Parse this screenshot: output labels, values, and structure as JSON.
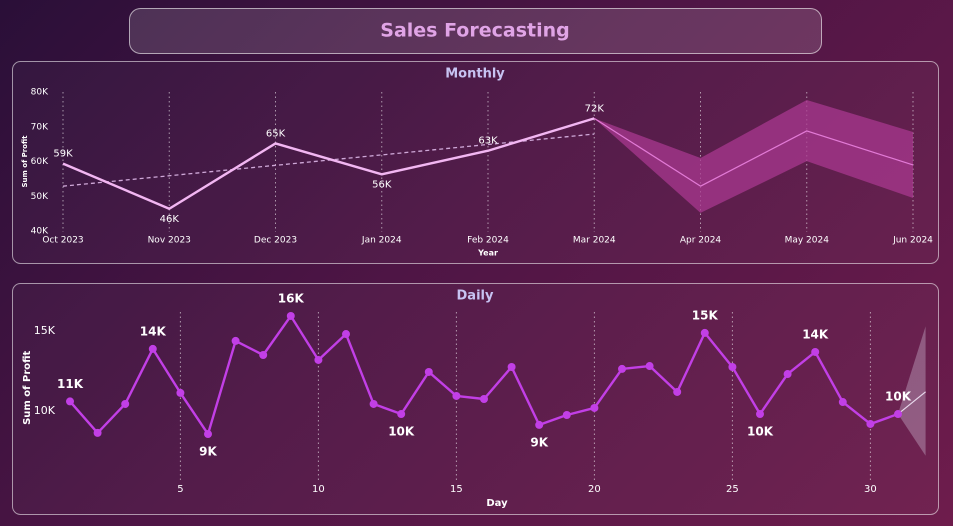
{
  "header": {
    "title": "Sales Forecasting"
  },
  "chart_data": [
    {
      "type": "line",
      "title": "Monthly",
      "categories": [
        "Oct 2023",
        "Nov 2023",
        "Dec 2023",
        "Jan 2024",
        "Feb 2024",
        "Mar 2024",
        "Apr 2024",
        "May 2024",
        "Jun 2024"
      ],
      "values": [
        59400,
        46400,
        65200,
        56300,
        63100,
        72400,
        null,
        null,
        null
      ],
      "value_labels": [
        "59K",
        "46K",
        "65K",
        "56K",
        "63K",
        "72K",
        null,
        null,
        null
      ],
      "forecast": [
        null,
        null,
        null,
        null,
        null,
        null,
        52900,
        68800,
        59000
      ],
      "forecast_lower": [
        null,
        null,
        null,
        null,
        null,
        null,
        45200,
        60100,
        49500
      ],
      "forecast_upper": [
        null,
        null,
        null,
        null,
        null,
        null,
        61000,
        77700,
        68500
      ],
      "trend": [
        52900,
        55900,
        58900,
        61900,
        64900,
        67900,
        null,
        null,
        null
      ],
      "color": "#f2b6f2",
      "forecast_color": "#e27ad6",
      "band_color": "#a8388f",
      "trend_color": "#cfa8d8",
      "ylim": [
        40000,
        80000
      ],
      "yticks": [
        {
          "value": 40000,
          "label": "40K"
        },
        {
          "value": 50000,
          "label": "50K"
        },
        {
          "value": 60000,
          "label": "60K"
        },
        {
          "value": 70000,
          "label": "70K"
        },
        {
          "value": 80000,
          "label": "80K"
        }
      ],
      "xlabel": "Year",
      "ylabel": "Sum of Profit",
      "xgrid": true
    },
    {
      "type": "line",
      "title": "Daily",
      "x": [
        1,
        2,
        3,
        4,
        5,
        6,
        7,
        8,
        9,
        10,
        11,
        12,
        13,
        14,
        15,
        16,
        17,
        18,
        19,
        20,
        21,
        22,
        23,
        24,
        25,
        26,
        27,
        28,
        29,
        30,
        31
      ],
      "values": [
        10600,
        8630,
        10440,
        13880,
        11130,
        8560,
        14380,
        13500,
        15940,
        13190,
        14810,
        10440,
        9810,
        12440,
        10940,
        10750,
        12750,
        9130,
        9750,
        10190,
        12630,
        12810,
        11190,
        14880,
        12750,
        9810,
        12310,
        13690,
        10560,
        9190,
        9810
      ],
      "value_labels": [
        "11K",
        null,
        null,
        "14K",
        null,
        "9K",
        null,
        null,
        "16K",
        null,
        null,
        null,
        "10K",
        null,
        null,
        null,
        null,
        "9K",
        null,
        null,
        null,
        null,
        null,
        "15K",
        null,
        "10K",
        null,
        "14K",
        null,
        null,
        "10K"
      ],
      "forecast_x": [
        32
      ],
      "forecast": [
        11200
      ],
      "forecast_lower": [
        7200
      ],
      "forecast_upper": [
        15300
      ],
      "color": "#c23fe6",
      "forecast_color": "#e8d8ec",
      "band_color": "#d8c8e0",
      "xlim": [
        0.5,
        32
      ],
      "xticks": [
        5,
        10,
        15,
        20,
        25,
        30
      ],
      "ylim": [
        6300,
        16600
      ],
      "yticks": [
        {
          "value": 10000,
          "label": "10K"
        },
        {
          "value": 15000,
          "label": "15K"
        }
      ],
      "xlabel": "Day",
      "ylabel": "Sum of Profit",
      "xgrid": true
    }
  ]
}
